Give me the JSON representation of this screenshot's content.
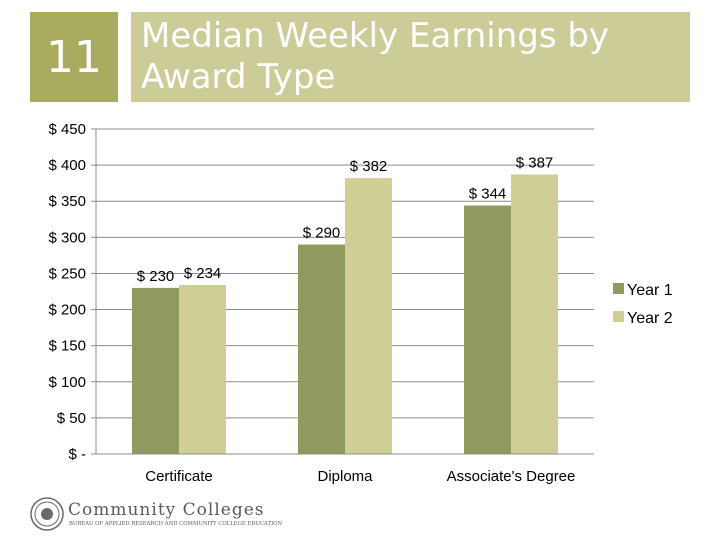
{
  "slide": {
    "number": "11",
    "title": "Median Weekly Earnings by Award Type"
  },
  "colors": {
    "header_box": "#a9ab5e",
    "title_box": "#cccc99",
    "series_1": "#8f9a5f",
    "series_2": "#cfcf95"
  },
  "chart_data": {
    "type": "bar",
    "categories": [
      "Certificate",
      "Diploma",
      "Associate's Degree"
    ],
    "series": [
      {
        "name": "Year 1",
        "values": [
          230,
          290,
          344
        ],
        "labels": [
          "$ 230",
          "$ 290",
          "$ 344"
        ]
      },
      {
        "name": "Year 2",
        "values": [
          234,
          382,
          387
        ],
        "labels": [
          "$ 234",
          "$ 382",
          "$ 387"
        ]
      }
    ],
    "ylim": [
      0,
      450
    ],
    "yticks": [
      0,
      50,
      100,
      150,
      200,
      250,
      300,
      350,
      400,
      450
    ],
    "ytick_labels": [
      "$ -",
      "$ 50",
      "$ 100",
      "$ 150",
      "$ 200",
      "$ 250",
      "$ 300",
      "$ 350",
      "$ 400",
      "$ 450"
    ],
    "grid": true,
    "legend_position": "right"
  },
  "logo": {
    "name": "Community Colleges",
    "subtitle": "BUREAU OF APPLIED RESEARCH AND COMMUNITY COLLEGE EDUCATION"
  }
}
